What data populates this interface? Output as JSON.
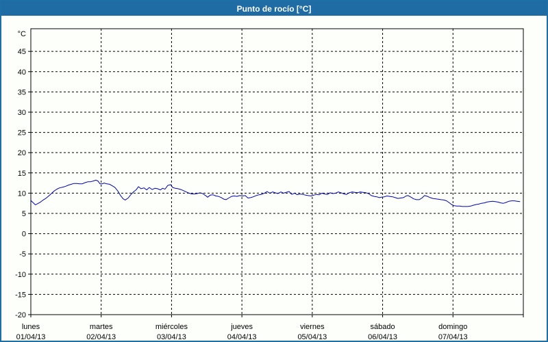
{
  "window": {
    "title": "Punto de rocío [°C]"
  },
  "colors": {
    "title_bar_bg": "#1e6ca3",
    "title_text": "#ffffff",
    "frame_border": "#1d6fa5",
    "plot_bg": "#fdfffa",
    "plot_border": "#000000",
    "grid": "#000000",
    "line": "#0000b4"
  },
  "chart_data": {
    "type": "line",
    "title": "Punto de rocío [°C]",
    "y_unit_label": "°C",
    "ylabel": "",
    "xlabel": "",
    "ylim": [
      -20,
      50.6
    ],
    "y_ticks": [
      45,
      40,
      35,
      30,
      25,
      20,
      15,
      10,
      5,
      0,
      -5,
      -10,
      -15,
      -20
    ],
    "grid": "dashed",
    "x_range_hours": [
      0,
      168
    ],
    "x_days": [
      {
        "name": "lunes",
        "date": "01/04/13"
      },
      {
        "name": "martes",
        "date": "02/04/13"
      },
      {
        "name": "miércoles",
        "date": "03/04/13"
      },
      {
        "name": "jueves",
        "date": "04/04/13"
      },
      {
        "name": "viernes",
        "date": "05/04/13"
      },
      {
        "name": "sábado",
        "date": "06/04/13"
      },
      {
        "name": "domingo",
        "date": "07/04/13"
      }
    ],
    "series": [
      {
        "name": "Punto de rocío",
        "color": "#0000b4",
        "points": [
          [
            0.0,
            8.2
          ],
          [
            0.7,
            7.7
          ],
          [
            1.6,
            7.1
          ],
          [
            2.3,
            7.4
          ],
          [
            3.3,
            7.8
          ],
          [
            4.2,
            8.3
          ],
          [
            5.1,
            8.7
          ],
          [
            6.1,
            9.3
          ],
          [
            7.0,
            9.9
          ],
          [
            7.9,
            10.5
          ],
          [
            8.9,
            11.0
          ],
          [
            9.8,
            11.3
          ],
          [
            11.0,
            11.5
          ],
          [
            11.9,
            11.7
          ],
          [
            12.9,
            12.0
          ],
          [
            13.8,
            12.2
          ],
          [
            14.7,
            12.4
          ],
          [
            15.7,
            12.4
          ],
          [
            16.6,
            12.3
          ],
          [
            17.5,
            12.3
          ],
          [
            18.5,
            12.6
          ],
          [
            19.4,
            12.8
          ],
          [
            20.3,
            12.8
          ],
          [
            21.3,
            13.0
          ],
          [
            22.2,
            13.2
          ],
          [
            22.9,
            13.0
          ],
          [
            23.6,
            12.3
          ],
          [
            24.3,
            12.3
          ],
          [
            25.0,
            12.5
          ],
          [
            25.9,
            12.3
          ],
          [
            26.9,
            12.2
          ],
          [
            27.8,
            11.8
          ],
          [
            28.7,
            11.4
          ],
          [
            29.7,
            10.5
          ],
          [
            30.6,
            9.4
          ],
          [
            31.5,
            8.6
          ],
          [
            32.2,
            8.3
          ],
          [
            33.2,
            8.8
          ],
          [
            34.1,
            9.6
          ],
          [
            35.0,
            10.3
          ],
          [
            36.0,
            10.9
          ],
          [
            36.7,
            11.6
          ],
          [
            37.6,
            11.1
          ],
          [
            38.6,
            11.3
          ],
          [
            39.5,
            10.8
          ],
          [
            40.4,
            11.4
          ],
          [
            41.4,
            10.9
          ],
          [
            42.3,
            11.2
          ],
          [
            43.2,
            11.1
          ],
          [
            44.2,
            10.8
          ],
          [
            44.9,
            11.2
          ],
          [
            45.8,
            11.0
          ],
          [
            46.7,
            11.9
          ],
          [
            47.7,
            12.1
          ],
          [
            48.4,
            11.4
          ],
          [
            49.3,
            11.2
          ],
          [
            50.2,
            11.1
          ],
          [
            51.2,
            10.9
          ],
          [
            52.1,
            10.6
          ],
          [
            53.0,
            10.3
          ],
          [
            54.0,
            10.0
          ],
          [
            54.9,
            9.8
          ],
          [
            55.8,
            9.8
          ],
          [
            56.8,
            9.9
          ],
          [
            57.7,
            10.1
          ],
          [
            58.6,
            9.9
          ],
          [
            59.6,
            9.4
          ],
          [
            60.3,
            9.0
          ],
          [
            61.2,
            9.5
          ],
          [
            62.1,
            9.6
          ],
          [
            63.1,
            9.3
          ],
          [
            64.0,
            9.2
          ],
          [
            65.0,
            8.9
          ],
          [
            65.9,
            8.5
          ],
          [
            66.6,
            8.4
          ],
          [
            67.5,
            8.8
          ],
          [
            68.5,
            9.2
          ],
          [
            69.4,
            9.3
          ],
          [
            70.3,
            9.2
          ],
          [
            71.3,
            9.4
          ],
          [
            72.2,
            9.3
          ],
          [
            73.1,
            9.4
          ],
          [
            74.1,
            8.8
          ],
          [
            75.0,
            8.9
          ],
          [
            75.9,
            9.1
          ],
          [
            76.9,
            9.4
          ],
          [
            77.8,
            9.6
          ],
          [
            78.7,
            9.7
          ],
          [
            79.7,
            10.0
          ],
          [
            80.6,
            10.4
          ],
          [
            81.5,
            10.0
          ],
          [
            82.5,
            10.3
          ],
          [
            83.4,
            10.1
          ],
          [
            84.3,
            9.9
          ],
          [
            85.3,
            10.3
          ],
          [
            86.2,
            10.0
          ],
          [
            87.1,
            10.2
          ],
          [
            88.1,
            10.4
          ],
          [
            89.0,
            9.7
          ],
          [
            90.0,
            10.0
          ],
          [
            90.9,
            9.6
          ],
          [
            91.8,
            9.8
          ],
          [
            92.8,
            9.7
          ],
          [
            93.7,
            9.5
          ],
          [
            94.6,
            9.4
          ],
          [
            95.6,
            9.3
          ],
          [
            96.5,
            9.5
          ],
          [
            97.4,
            9.7
          ],
          [
            98.4,
            9.6
          ],
          [
            99.3,
            10.0
          ],
          [
            100.2,
            9.8
          ],
          [
            101.2,
            9.7
          ],
          [
            102.1,
            10.1
          ],
          [
            103.0,
            9.9
          ],
          [
            104.0,
            10.0
          ],
          [
            104.9,
            10.3
          ],
          [
            105.8,
            10.1
          ],
          [
            106.8,
            9.8
          ],
          [
            107.7,
            9.7
          ],
          [
            108.6,
            10.1
          ],
          [
            109.6,
            10.3
          ],
          [
            110.5,
            10.2
          ],
          [
            111.4,
            10.1
          ],
          [
            112.4,
            10.3
          ],
          [
            113.3,
            10.2
          ],
          [
            114.3,
            10.1
          ],
          [
            115.2,
            9.9
          ],
          [
            116.1,
            9.4
          ],
          [
            117.1,
            9.2
          ],
          [
            118.0,
            9.1
          ],
          [
            118.9,
            8.9
          ],
          [
            119.6,
            9.0
          ],
          [
            120.6,
            9.1
          ],
          [
            121.5,
            9.3
          ],
          [
            122.4,
            9.2
          ],
          [
            123.4,
            9.1
          ],
          [
            124.3,
            8.9
          ],
          [
            125.2,
            8.7
          ],
          [
            126.2,
            8.8
          ],
          [
            127.1,
            8.9
          ],
          [
            128.0,
            9.3
          ],
          [
            128.7,
            9.4
          ],
          [
            129.7,
            9.0
          ],
          [
            130.6,
            8.6
          ],
          [
            131.5,
            8.4
          ],
          [
            132.5,
            8.4
          ],
          [
            133.4,
            8.8
          ],
          [
            134.3,
            9.4
          ],
          [
            135.3,
            9.2
          ],
          [
            136.2,
            8.9
          ],
          [
            137.1,
            8.7
          ],
          [
            138.1,
            8.6
          ],
          [
            139.0,
            8.5
          ],
          [
            139.9,
            8.4
          ],
          [
            140.9,
            8.3
          ],
          [
            141.8,
            8.1
          ],
          [
            142.8,
            7.6
          ],
          [
            143.5,
            7.2
          ],
          [
            144.4,
            6.9
          ],
          [
            145.3,
            6.8
          ],
          [
            146.3,
            6.8
          ],
          [
            147.2,
            6.7
          ],
          [
            148.1,
            6.7
          ],
          [
            149.1,
            6.7
          ],
          [
            150.0,
            6.8
          ],
          [
            150.9,
            7.0
          ],
          [
            151.9,
            7.2
          ],
          [
            152.8,
            7.3
          ],
          [
            153.7,
            7.5
          ],
          [
            154.7,
            7.6
          ],
          [
            155.6,
            7.8
          ],
          [
            156.5,
            7.9
          ],
          [
            157.5,
            8.0
          ],
          [
            158.4,
            7.9
          ],
          [
            159.3,
            7.8
          ],
          [
            160.3,
            7.6
          ],
          [
            161.2,
            7.5
          ],
          [
            162.1,
            7.7
          ],
          [
            163.1,
            8.0
          ],
          [
            164.0,
            8.1
          ],
          [
            164.9,
            8.1
          ],
          [
            165.9,
            8.0
          ],
          [
            166.8,
            7.9
          ]
        ]
      }
    ]
  }
}
